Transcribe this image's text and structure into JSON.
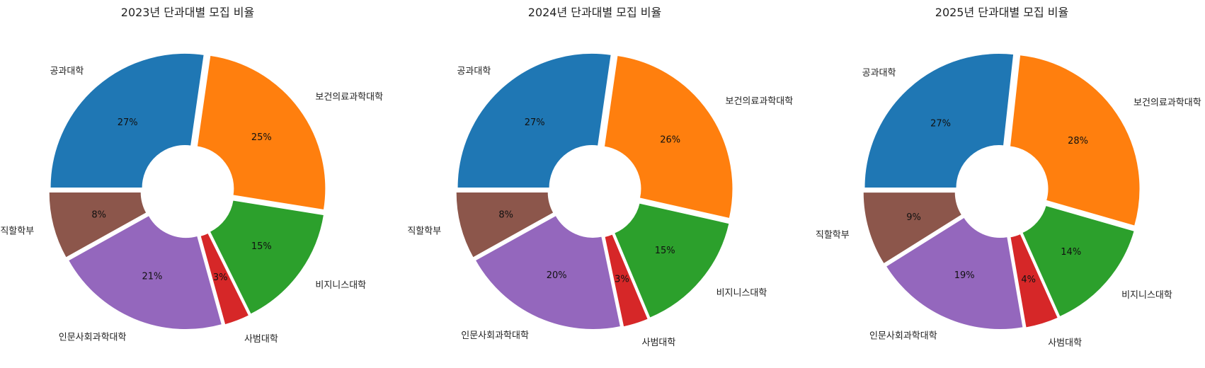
{
  "colors": {
    "공과대학": "#1f77b4",
    "보건의료과학대학": "#ff7f0e",
    "비지니스대학": "#2ca02c",
    "사범대학": "#d62728",
    "인문사회과학대학": "#9467bd",
    "직할학부": "#8c564b"
  },
  "chart_data": [
    {
      "type": "pie",
      "title": "2023년 단과대별 모집 비율",
      "categories": [
        "공과대학",
        "보건의료과학대학",
        "비지니스대학",
        "사범대학",
        "인문사회과학대학",
        "직할학부"
      ],
      "values": [
        27,
        25,
        15,
        3,
        21,
        8
      ],
      "percent_labels": [
        "27%",
        "25%",
        "15%",
        "3%",
        "21%",
        "8%"
      ],
      "start_angle_deg": 180,
      "direction": "clockwise",
      "donut": true
    },
    {
      "type": "pie",
      "title": "2024년 단과대별 모집 비율",
      "categories": [
        "공과대학",
        "보건의료과학대학",
        "비지니스대학",
        "사범대학",
        "인문사회과학대학",
        "직할학부"
      ],
      "values": [
        27,
        26,
        15,
        3,
        20,
        8
      ],
      "percent_labels": [
        "27%",
        "26%",
        "15%",
        "3%",
        "20%",
        "8%"
      ],
      "start_angle_deg": 180,
      "direction": "clockwise",
      "donut": true
    },
    {
      "type": "pie",
      "title": "2025년 단과대별 모집 비율",
      "categories": [
        "공과대학",
        "보건의료과학대학",
        "비지니스대학",
        "사범대학",
        "인문사회과학대학",
        "직할학부"
      ],
      "values": [
        27,
        28,
        14,
        4,
        19,
        9
      ],
      "percent_labels": [
        "27%",
        "28%",
        "14%",
        "4%",
        "19%",
        "9%"
      ],
      "start_angle_deg": 180,
      "direction": "clockwise",
      "donut": true
    }
  ]
}
